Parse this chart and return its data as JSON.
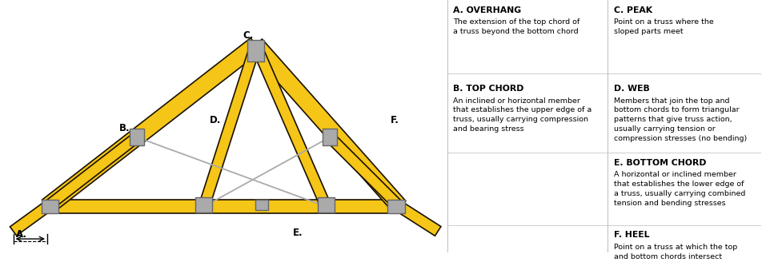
{
  "bg_color": "#ffffff",
  "truss_fill": "#F5C518",
  "truss_edge": "#1a1200",
  "connector_fill": "#aaaaaa",
  "connector_edge": "#666666",
  "web_line_color": "#aaaaaa",
  "annotations": [
    {
      "title": "A. OVERHANG",
      "body": "The extension of the top chord of\na truss beyond the bottom chord",
      "col": 0,
      "row": 0
    },
    {
      "title": "B. TOP CHORD",
      "body": "An inclined or horizontal member\nthat establishes the upper edge of a\ntruss, usually carrying compression\nand bearing stress",
      "col": 0,
      "row": 1
    },
    {
      "title": "C. PEAK",
      "body": "Point on a truss where the\nsloped parts meet",
      "col": 1,
      "row": 0
    },
    {
      "title": "D. WEB",
      "body": "Members that join the top and\nbottom chords to form triangular\npatterns that give truss action,\nusually carrying tension or\ncompression stresses (no bending)",
      "col": 1,
      "row": 1
    },
    {
      "title": "E. BOTTOM CHORD",
      "body": "A horizontal or inclined member\nthat establishes the lower edge of\na truss, usually carrying combined\ntension and bending stresses",
      "col": 1,
      "row": 2
    },
    {
      "title": "F. HEEL",
      "body": "Point on a truss at which the top\nand bottom chords intersect",
      "col": 1,
      "row": 3
    }
  ]
}
